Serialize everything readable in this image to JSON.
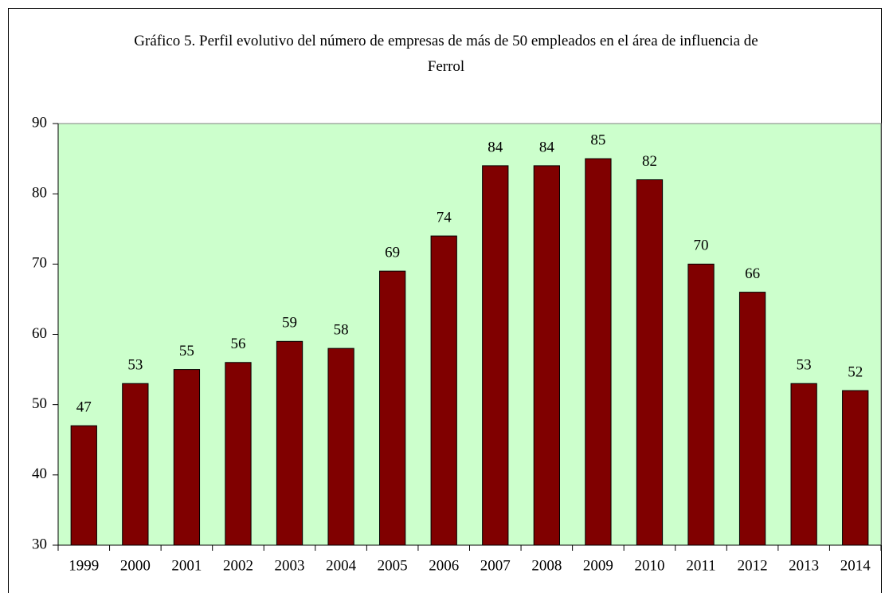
{
  "chart_data": {
    "type": "bar",
    "title": "Gráfico 5. Perfil evolutivo del número de empresas de más de 50 empleados en el área de influencia de Ferrol",
    "categories": [
      "1999",
      "2000",
      "2001",
      "2002",
      "2003",
      "2004",
      "2005",
      "2006",
      "2007",
      "2008",
      "2009",
      "2010",
      "2011",
      "2012",
      "2013",
      "2014"
    ],
    "values": [
      47,
      53,
      55,
      56,
      59,
      58,
      69,
      74,
      84,
      84,
      85,
      82,
      70,
      66,
      53,
      52
    ],
    "color": "#800000",
    "ylim": [
      30,
      90
    ],
    "yticks": [
      30,
      40,
      50,
      60,
      70,
      80,
      90
    ],
    "grid": false
  }
}
